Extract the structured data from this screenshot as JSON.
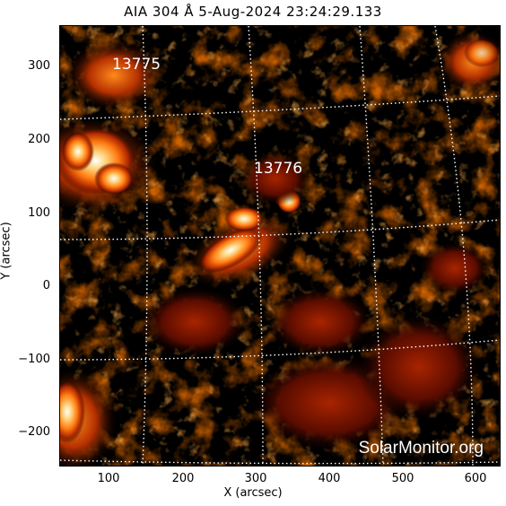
{
  "title": "AIA 304 Å  5-Aug-2024 23:24:29.133",
  "axes": {
    "xlabel": "X (arcsec)",
    "ylabel": "Y (arcsec)",
    "xticks": [
      "100",
      "200",
      "300",
      "400",
      "500",
      "600"
    ],
    "yticks": [
      "300",
      "200",
      "100",
      "0",
      "−100",
      "−200"
    ]
  },
  "regions": [
    {
      "label": "13775"
    },
    {
      "label": "13776"
    }
  ],
  "watermark": "SolarMonitor.org",
  "colors": {
    "background": "#000000",
    "grid": "#ffffff",
    "emission_bright": "#ffffff",
    "emission_mid": "#ff8a1a",
    "emission_low": "#a01e00"
  }
}
